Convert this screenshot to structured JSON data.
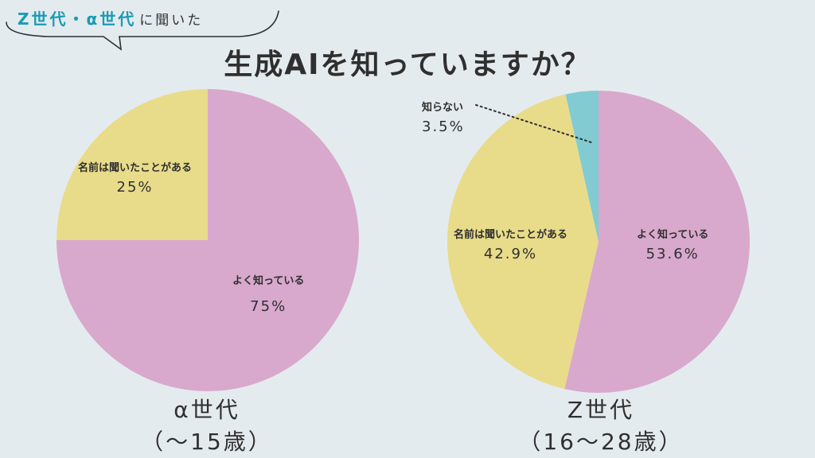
{
  "header": {
    "tag_z": "Z世代",
    "tag_sep": "・",
    "tag_alpha": "α世代",
    "tag_suffix": "に聞いた",
    "title": "生成AIを知っていますか？"
  },
  "colors": {
    "pink": "#d8a9cc",
    "yellow": "#e8dc8a",
    "teal": "#82cbd2",
    "background": "#e4ebee"
  },
  "chart_data": [
    {
      "type": "pie",
      "generation": "α世代",
      "age_range": "（〜15歳）",
      "slices": [
        {
          "label": "よく知っている",
          "value": 75,
          "display": "75%",
          "color": "#d8a9cc"
        },
        {
          "label": "名前は聞いたことがある",
          "value": 25,
          "display": "25%",
          "color": "#e8dc8a"
        }
      ]
    },
    {
      "type": "pie",
      "generation": "Z世代",
      "age_range": "（16〜28歳）",
      "slices": [
        {
          "label": "よく知っている",
          "value": 53.6,
          "display": "53.6%",
          "color": "#d8a9cc"
        },
        {
          "label": "名前は聞いたことがある",
          "value": 42.9,
          "display": "42.9%",
          "color": "#e8dc8a"
        },
        {
          "label": "知らない",
          "value": 3.5,
          "display": "3.5%",
          "color": "#82cbd2"
        }
      ]
    }
  ]
}
